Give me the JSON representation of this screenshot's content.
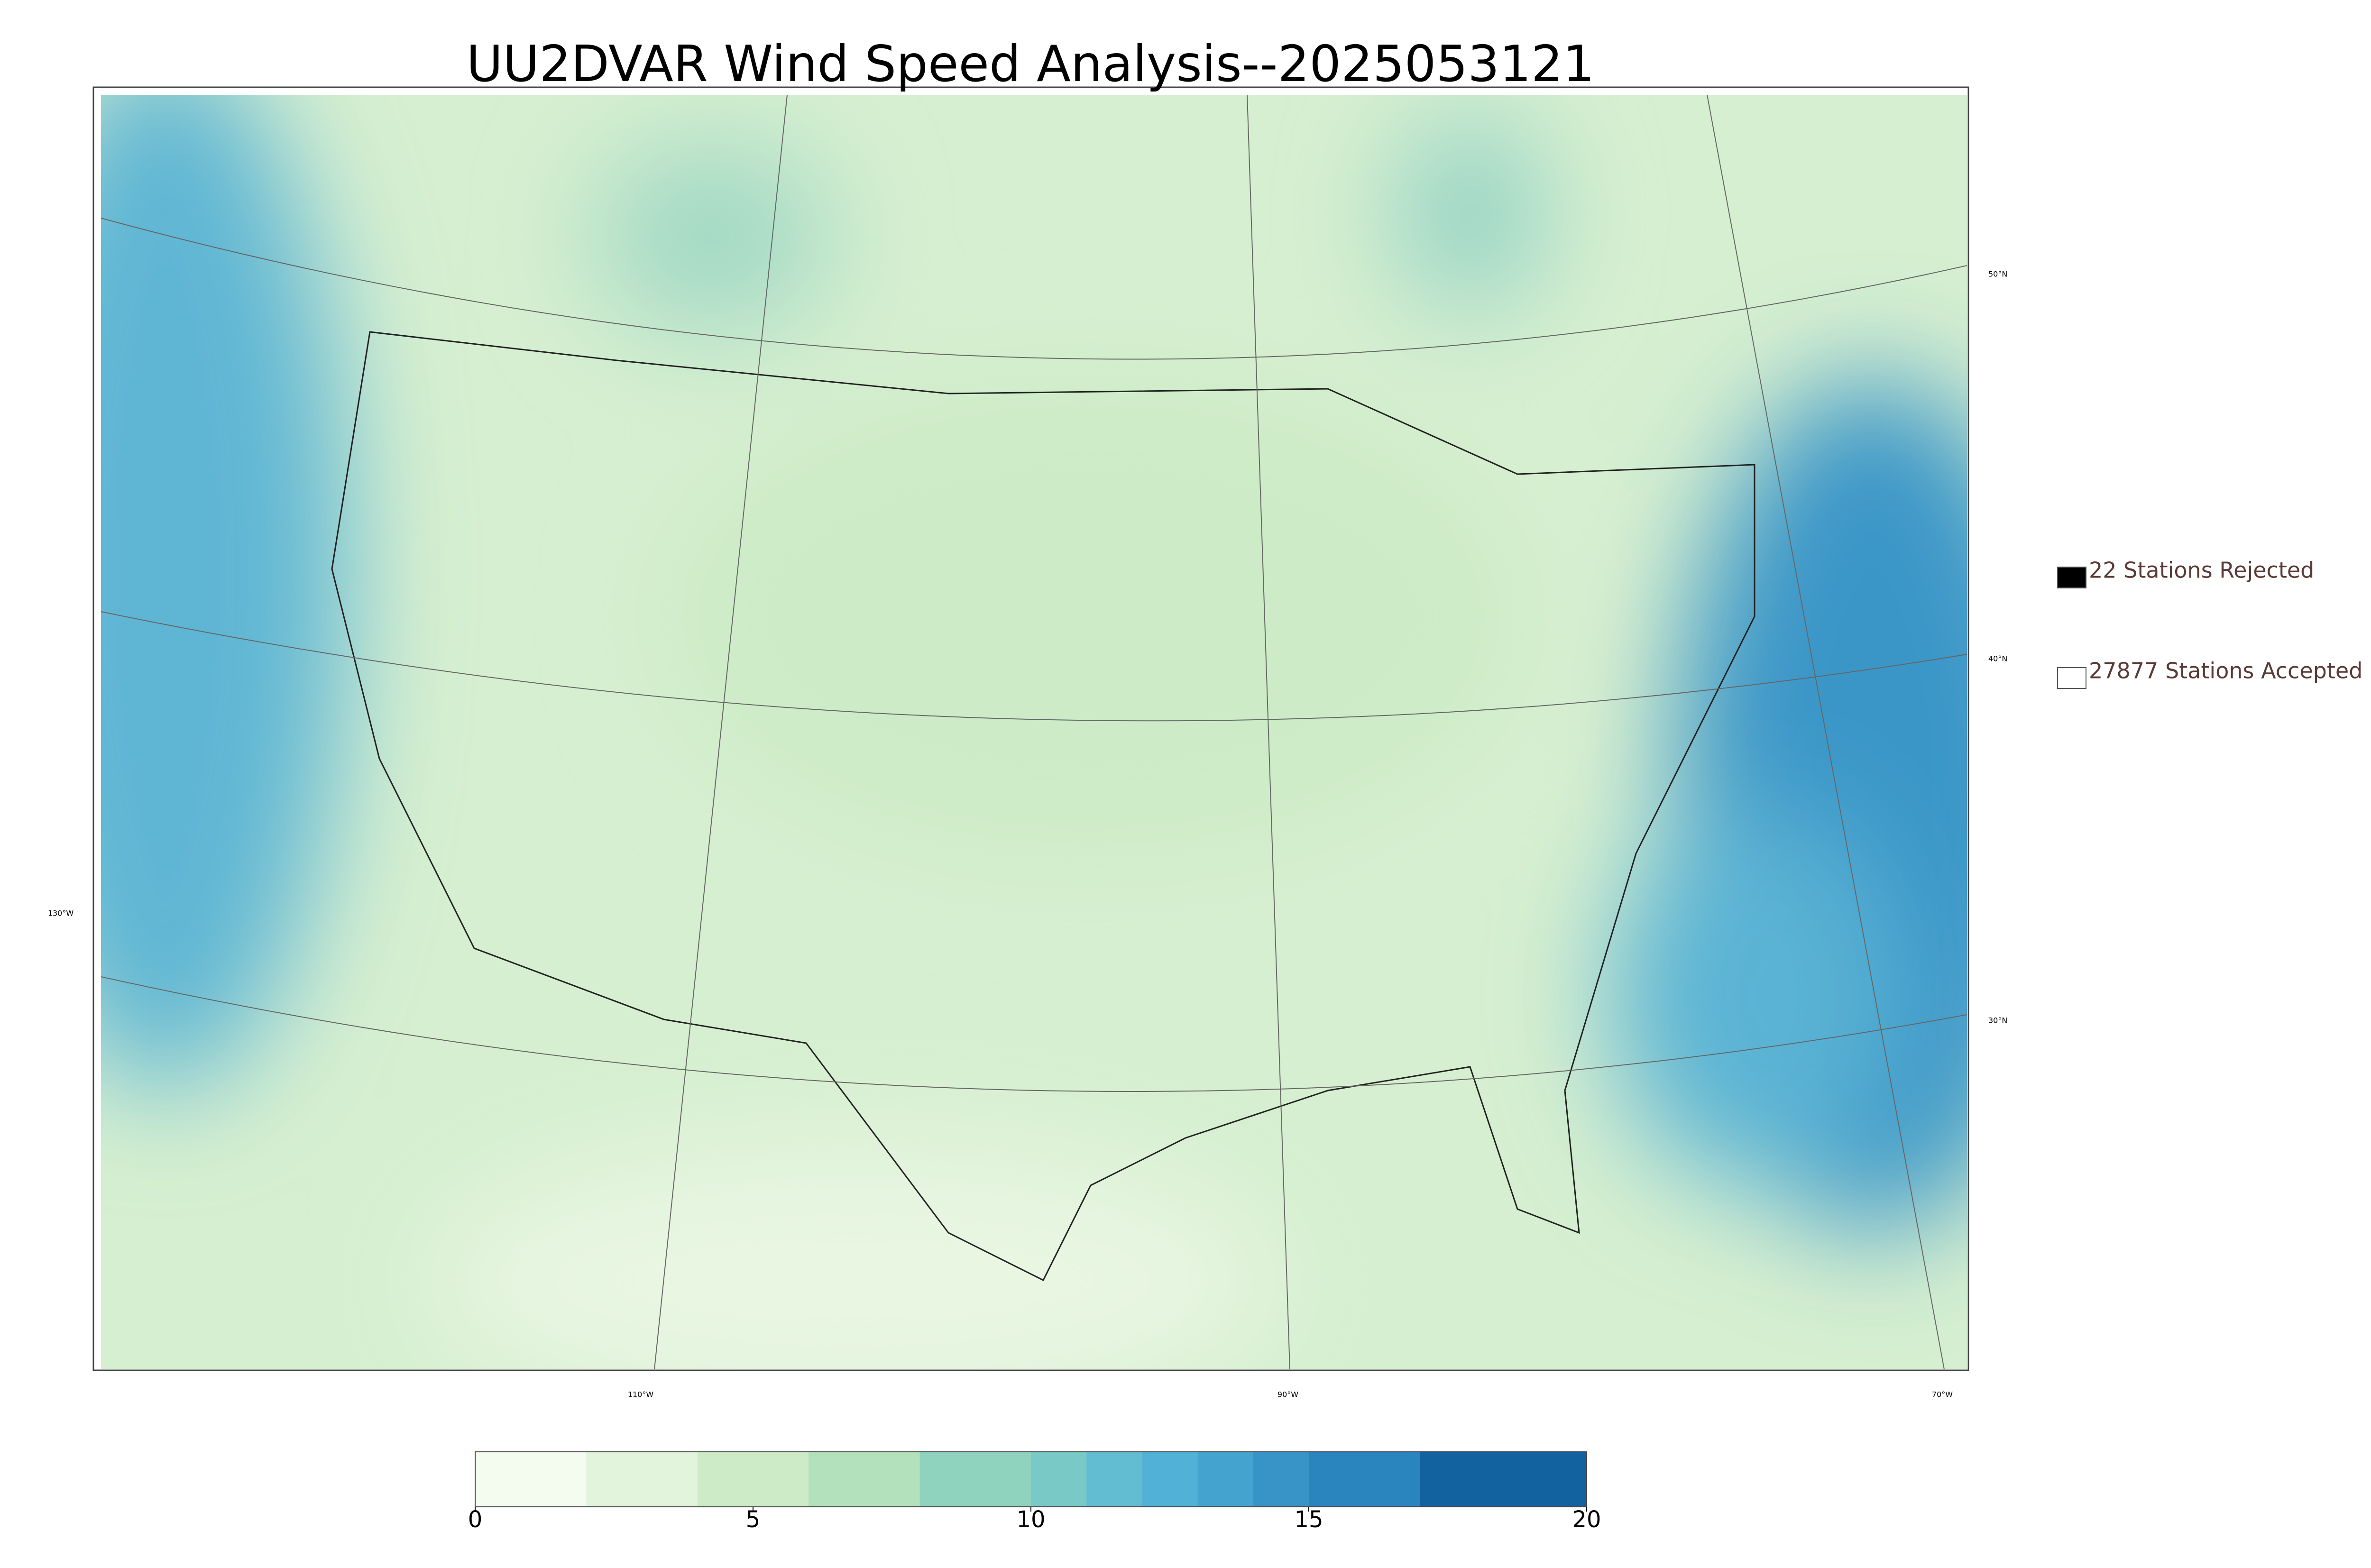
{
  "title": "UU2DVAR Wind Speed Analysis--2025053121",
  "legend": [
    {
      "label": "22 Stations Rejected",
      "color": "#000000"
    },
    {
      "label": "27877 Stations Accepted",
      "color": "#ffffff"
    }
  ],
  "latitude_labels": [
    "50°N",
    "40°N",
    "30°N"
  ],
  "longitude_labels": [
    "130°W",
    "110°W",
    "90°W",
    "70°W"
  ],
  "colorbar": {
    "bins": [
      0,
      2,
      4,
      6,
      8,
      10,
      11,
      12,
      13,
      14,
      15,
      17,
      20
    ],
    "colors": [
      "#f4fbef",
      "#e2f4dc",
      "#cdebc6",
      "#b2e1bb",
      "#8fd3bf",
      "#79c9c6",
      "#62bcd2",
      "#52b1d6",
      "#44a3cf",
      "#3894c6",
      "#2a84bd",
      "#12629f"
    ],
    "ticks": [
      0,
      5,
      10,
      15,
      20
    ]
  }
}
